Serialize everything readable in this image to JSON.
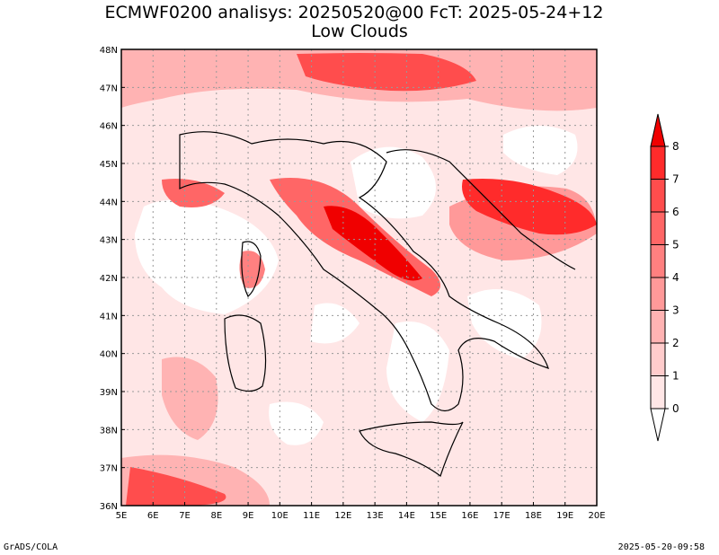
{
  "title": {
    "line1": "ECMWF0200 analisys: 20250520@00 FcT: 2025-05-24+12",
    "line2": "Low Clouds"
  },
  "map": {
    "lon_labels": [
      "5E",
      "6E",
      "7E",
      "8E",
      "9E",
      "10E",
      "11E",
      "12E",
      "13E",
      "14E",
      "15E",
      "16E",
      "17E",
      "18E",
      "19E",
      "20E"
    ],
    "lat_labels": [
      "48N",
      "47N",
      "46N",
      "45N",
      "44N",
      "43N",
      "42N",
      "41N",
      "40N",
      "39N",
      "38N",
      "37N",
      "36N"
    ],
    "lon_range": [
      5,
      20
    ],
    "lat_range": [
      36,
      48
    ],
    "grid": "dotted"
  },
  "colorbar": {
    "levels": [
      "0",
      "1",
      "2",
      "3",
      "4",
      "5",
      "6",
      "7",
      "8"
    ],
    "colors": [
      "#ffe6e6",
      "#ffcccc",
      "#ffb3b3",
      "#ff9999",
      "#ff8080",
      "#ff6666",
      "#ff4d4d",
      "#ff2b2b",
      "#f00000"
    ]
  },
  "footer": {
    "left": "GrADS/COLA",
    "right": "2025-05-20-09:58"
  }
}
